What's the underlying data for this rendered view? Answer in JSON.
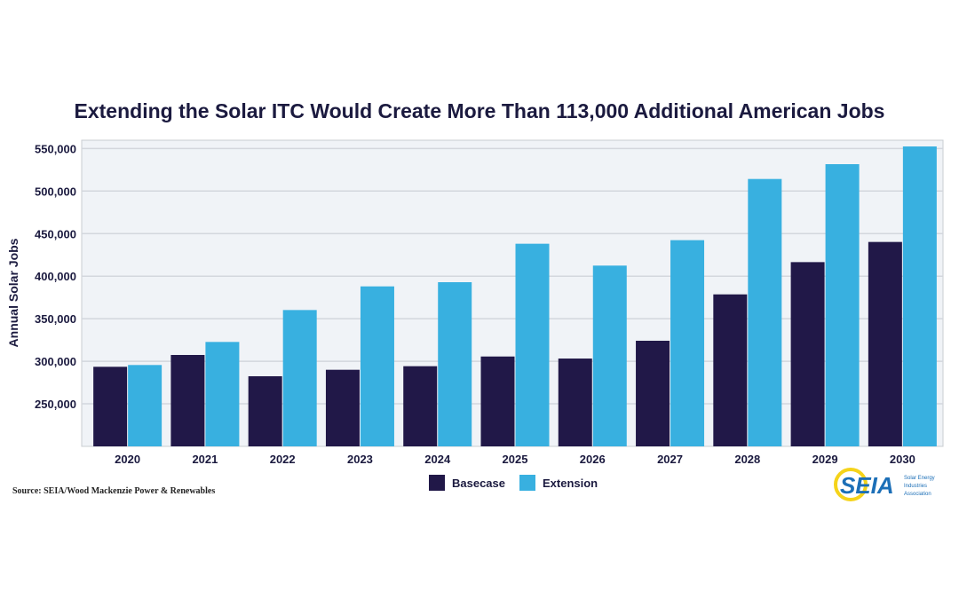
{
  "chart_data": {
    "type": "bar",
    "title": "Extending the Solar ITC Would Create More Than 113,000 Additional American Jobs",
    "xlabel": "",
    "ylabel": "Annual Solar Jobs",
    "ylim": [
      200000,
      560000
    ],
    "yticks": [
      250000,
      300000,
      350000,
      400000,
      450000,
      500000,
      550000
    ],
    "ytick_labels": [
      "250,000",
      "300,000",
      "350,000",
      "400,000",
      "450,000",
      "500,000",
      "550,000"
    ],
    "grid": true,
    "legend_position": "bottom",
    "categories": [
      "2020",
      "2021",
      "2022",
      "2023",
      "2024",
      "2025",
      "2026",
      "2027",
      "2028",
      "2029",
      "2030"
    ],
    "series": [
      {
        "name": "Basecase",
        "color": "#211848",
        "values": [
          293500,
          307400,
          282400,
          290000,
          294200,
          305600,
          303200,
          324100,
          378600,
          416500,
          440200
        ]
      },
      {
        "name": "Extension",
        "color": "#38b0e0",
        "values": [
          295600,
          322700,
          360200,
          388000,
          392900,
          438100,
          412400,
          442300,
          514200,
          531600,
          552400
        ]
      }
    ]
  },
  "source": "Source: SEIA/Wood Mackenzie Power & Renewables",
  "logo": {
    "text": "SEIA",
    "subtitle": "Solar Energy Industries Association"
  }
}
